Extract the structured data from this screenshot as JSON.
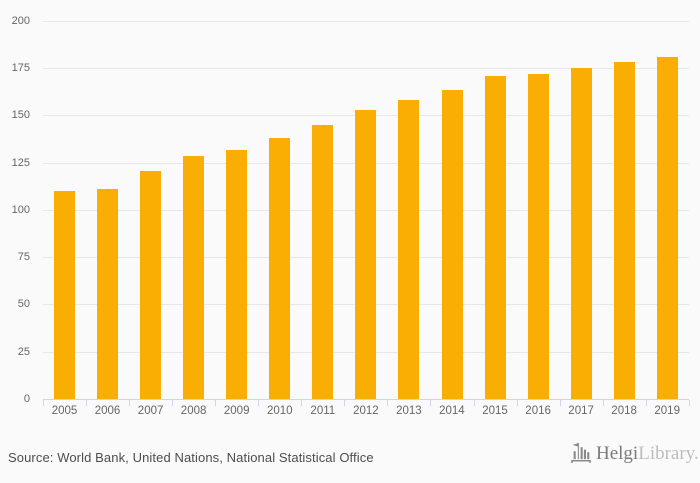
{
  "chart_data": {
    "type": "bar",
    "title": "",
    "categories": [
      "2005",
      "2006",
      "2007",
      "2008",
      "2009",
      "2010",
      "2011",
      "2012",
      "2013",
      "2014",
      "2015",
      "2016",
      "2017",
      "2018",
      "2019"
    ],
    "values": [
      110,
      111,
      120.5,
      128.5,
      131.5,
      138,
      145,
      153,
      158,
      163.5,
      171,
      172,
      175,
      178,
      181
    ],
    "xlabel": "",
    "ylabel": "",
    "ylim": [
      0,
      200
    ],
    "yticks": [
      0,
      25,
      50,
      75,
      100,
      125,
      150,
      175,
      200
    ],
    "grid": true,
    "legend": "none",
    "bar_color": "#FAAE04"
  },
  "colors": {
    "background": "#FAFAFA",
    "gridline": "#E7E7E7",
    "axis_line": "#CCD6EB",
    "tick_label": "#666666",
    "source_text": "#4D4D4D",
    "logo_primary": "#7B7B7B",
    "logo_secondary": "#BDBDBD",
    "logo_icon": "#8A8A8A"
  },
  "footer": {
    "source_text": "Source: World Bank, United Nations, National Statistical Office",
    "logo": {
      "icon": "helgi-library-icon",
      "text_primary": "Helgi",
      "text_secondary": "Library."
    }
  }
}
